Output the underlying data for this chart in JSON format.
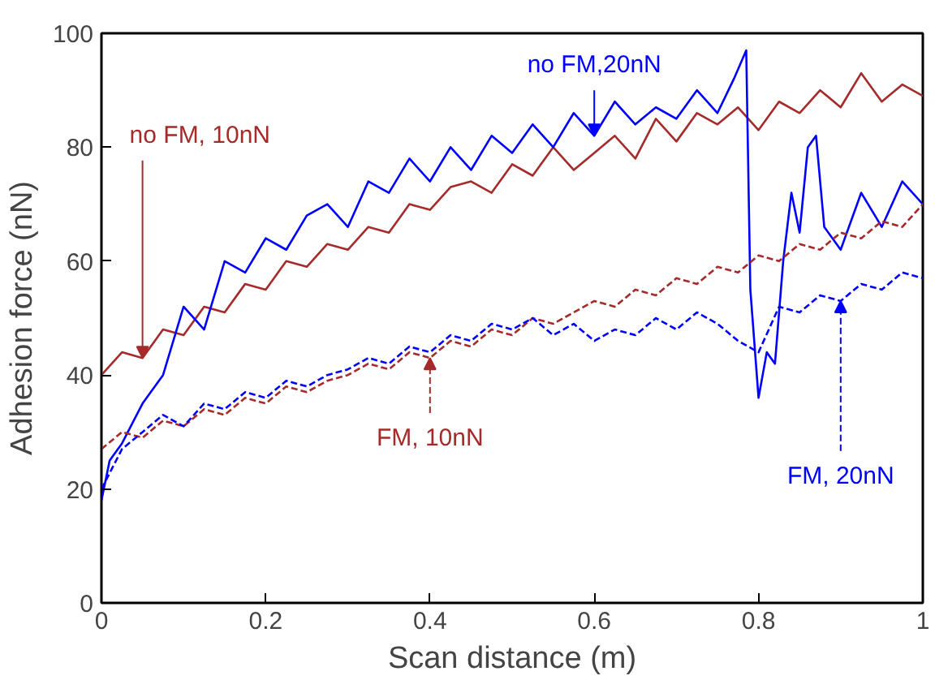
{
  "chart_data": {
    "type": "line",
    "xlabel": "Scan distance (m)",
    "ylabel": "Adhesion force (nN)",
    "xlim": [
      0,
      1
    ],
    "ylim": [
      0,
      100
    ],
    "xticks": [
      0,
      {
        "value": 0.2,
        "label": "0.2"
      },
      {
        "value": 0.4,
        "label": "0.4"
      },
      {
        "value": 0.6,
        "label": "0.6"
      },
      {
        "value": 0.8,
        "label": "0.8"
      },
      1
    ],
    "yticks": [
      0,
      20,
      40,
      60,
      80,
      100
    ],
    "grid": false,
    "x": [
      0,
      0.025,
      0.05,
      0.075,
      0.1,
      0.125,
      0.15,
      0.175,
      0.2,
      0.225,
      0.25,
      0.275,
      0.3,
      0.325,
      0.35,
      0.375,
      0.4,
      0.425,
      0.45,
      0.475,
      0.5,
      0.525,
      0.55,
      0.575,
      0.6,
      0.625,
      0.65,
      0.675,
      0.7,
      0.725,
      0.75,
      0.775,
      0.8,
      0.825,
      0.85,
      0.875,
      0.9,
      0.925,
      0.95,
      0.975,
      1
    ],
    "series": [
      {
        "color": "#a52a2a",
        "line_style": "solid",
        "values": [
          40,
          44,
          43,
          48,
          47,
          52,
          51,
          56,
          55,
          60,
          59,
          63,
          62,
          66,
          65,
          70,
          69,
          73,
          74,
          72,
          77,
          75,
          80,
          76,
          79,
          82,
          78,
          85,
          81,
          86,
          84,
          87,
          83,
          88,
          86,
          90,
          87,
          93,
          88,
          91,
          89
        ]
      },
      {
        "color": "#0000ff",
        "line_style": "solid",
        "x": [
          0,
          0.01,
          0.025,
          0.05,
          0.075,
          0.1,
          0.125,
          0.15,
          0.175,
          0.2,
          0.225,
          0.25,
          0.275,
          0.3,
          0.325,
          0.35,
          0.375,
          0.4,
          0.425,
          0.45,
          0.475,
          0.5,
          0.525,
          0.55,
          0.575,
          0.6,
          0.625,
          0.65,
          0.675,
          0.7,
          0.725,
          0.75,
          0.77,
          0.785,
          0.79,
          0.8,
          0.81,
          0.82,
          0.83,
          0.84,
          0.85,
          0.86,
          0.87,
          0.88,
          0.9,
          0.925,
          0.95,
          0.975,
          1
        ],
        "values": [
          18,
          25,
          28,
          35,
          40,
          52,
          48,
          60,
          58,
          64,
          62,
          68,
          70,
          66,
          74,
          72,
          78,
          74,
          80,
          76,
          82,
          79,
          84,
          80,
          86,
          82,
          88,
          84,
          87,
          85,
          90,
          86,
          92,
          97,
          55,
          36,
          44,
          42,
          60,
          72,
          65,
          80,
          82,
          66,
          62,
          72,
          66,
          74,
          70
        ]
      },
      {
        "color": "#a52a2a",
        "line_style": "dashed",
        "values": [
          27,
          30,
          29,
          32,
          31,
          34,
          33,
          36,
          35,
          38,
          37,
          39,
          40,
          42,
          41,
          44,
          43,
          46,
          45,
          48,
          47,
          50,
          49,
          51,
          53,
          52,
          55,
          54,
          57,
          56,
          59,
          58,
          61,
          60,
          63,
          62,
          65,
          64,
          67,
          66,
          70
        ]
      },
      {
        "color": "#0000ff",
        "line_style": "dashed",
        "values": [
          20,
          27,
          30,
          33,
          31,
          35,
          34,
          37,
          36,
          39,
          38,
          40,
          41,
          43,
          42,
          45,
          44,
          47,
          46,
          49,
          48,
          50,
          47,
          49,
          46,
          48,
          47,
          50,
          48,
          51,
          49,
          46,
          44,
          52,
          51,
          54,
          53,
          56,
          55,
          58,
          57
        ]
      }
    ],
    "annotations": [
      {
        "text": "no FM, 10nN",
        "x": 0.05,
        "y": 43
      },
      {
        "text": "FM, 10nN",
        "x": 0.4,
        "y": 43
      },
      {
        "text": "no FM,20nN",
        "x": 0.6,
        "y": 82
      },
      {
        "text": "FM, 20nN",
        "x": 0.9,
        "y": 53
      }
    ]
  }
}
